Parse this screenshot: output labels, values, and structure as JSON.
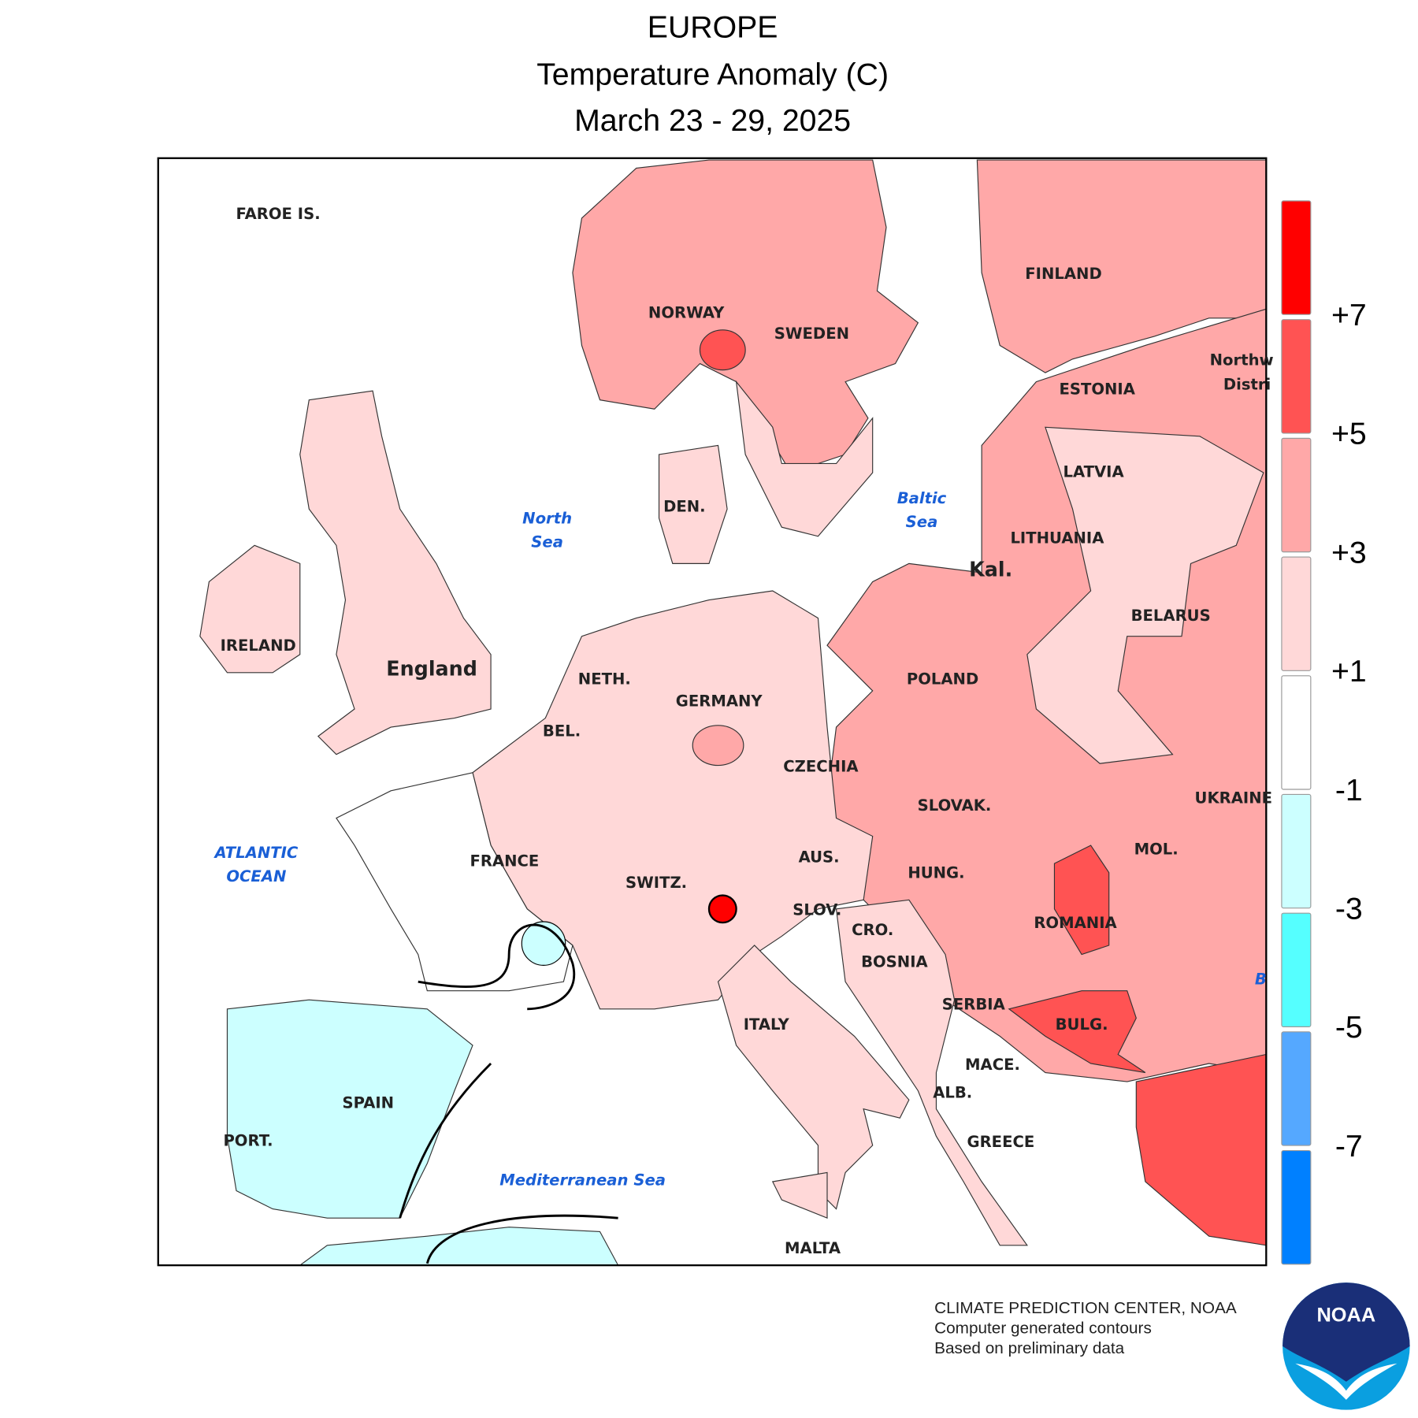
{
  "header": {
    "title": "EUROPE",
    "subtitle": "Temperature Anomaly (C)",
    "period": "March 23 - 29, 2025"
  },
  "map": {
    "labels": [
      "FAROE IS.",
      "NORWAY",
      "SWEDEN",
      "FINLAND",
      "Northw",
      "Distri",
      "ESTONIA",
      "LATVIA",
      "LITHUANIA",
      "Kal.",
      "BELARUS",
      "IRELAND",
      "England",
      "DEN.",
      "NETH.",
      "GERMANY",
      "POLAND",
      "BEL.",
      "CZECHIA",
      "UKRAINE",
      "SLOVAK.",
      "FRANCE",
      "AUS.",
      "HUNG.",
      "MOL.",
      "SWITZ.",
      "SLOV.",
      "ROMANIA",
      "CRO.",
      "BOSNIA",
      "SERBIA",
      "BULG.",
      "ITALY",
      "MACE.",
      "ALB.",
      "SPAIN",
      "PORT.",
      "GREECE",
      "MALTA"
    ],
    "seas": [
      "North",
      "Sea",
      "Baltic",
      "Sea",
      "ATLANTIC",
      "OCEAN",
      "Mediterranean Sea",
      "B"
    ]
  },
  "legend": {
    "labels": [
      "+7",
      "+5",
      "+3",
      "+1",
      "-1",
      "-3",
      "-5",
      "-7"
    ],
    "colors": [
      "#ff0000",
      "#ff5353",
      "#ffa8a8",
      "#ffd8d8",
      "#ffffff",
      "#ccffff",
      "#55ffff",
      "#55a8ff",
      "#0080ff"
    ]
  },
  "footer": {
    "lines": [
      "CLIMATE PREDICTION CENTER, NOAA",
      "Computer generated contours",
      "Based on preliminary data"
    ]
  },
  "logo": {
    "text": "NOAA"
  }
}
